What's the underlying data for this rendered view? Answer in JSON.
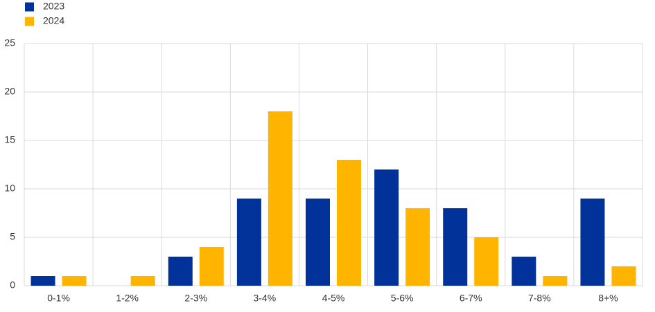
{
  "chart_data": {
    "type": "bar",
    "categories": [
      "0-1%",
      "1-2%",
      "2-3%",
      "3-4%",
      "4-5%",
      "5-6%",
      "6-7%",
      "7-8%",
      "8+%"
    ],
    "series": [
      {
        "name": "2023",
        "color": "#003299",
        "values": [
          1,
          0,
          3,
          9,
          9,
          12,
          8,
          3,
          9
        ]
      },
      {
        "name": "2024",
        "color": "#ffb400",
        "values": [
          1,
          1,
          4,
          18,
          13,
          8,
          5,
          1,
          2
        ]
      }
    ],
    "ylim": [
      0,
      25
    ],
    "yticks": [
      0,
      5,
      10,
      15,
      20,
      25
    ],
    "grid": true,
    "legend": "top-left"
  }
}
